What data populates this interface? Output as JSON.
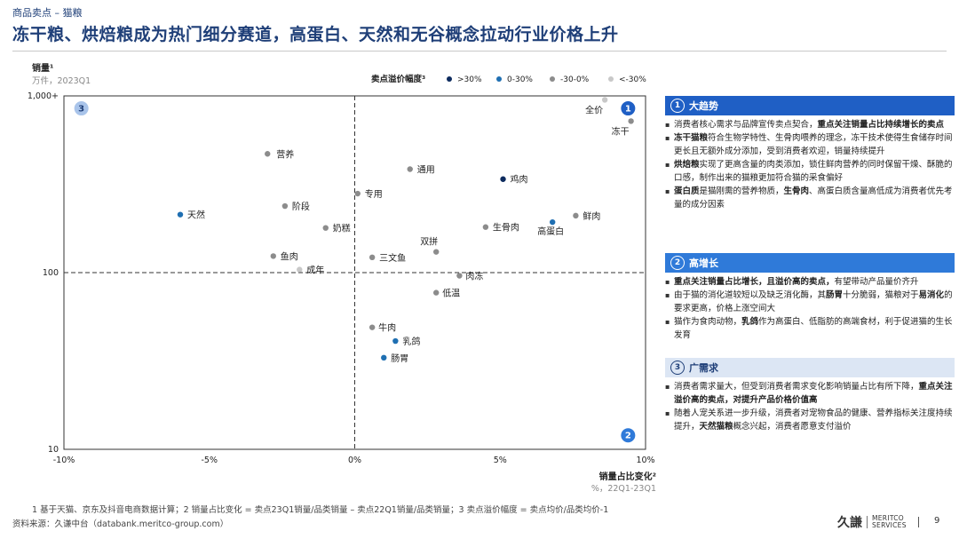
{
  "header": {
    "breadcrumb": "商品卖点 – 猫粮",
    "title": "冻干粮、烘焙粮成为热门细分赛道，高蛋白、天然和无谷概念拉动行业价格上升"
  },
  "chart_data": {
    "type": "scatter",
    "ylabel": "销量¹",
    "ylabel_unit": "万件，2023Q1",
    "xlabel": "销量占比变化²",
    "xlabel_unit": "%，22Q1-23Q1",
    "y_scale": "log",
    "ylim": [
      10,
      1000
    ],
    "y_ticks": [
      10,
      100,
      1000
    ],
    "y_tick_labels": [
      "10",
      "100",
      "1,000+"
    ],
    "xlim": [
      -10,
      10
    ],
    "x_ticks": [
      -10,
      -5,
      0,
      5,
      10
    ],
    "x_tick_labels": [
      "-10%",
      "-5%",
      "0%",
      "5%",
      "10%"
    ],
    "reference_lines": {
      "x": 0,
      "y": 100
    },
    "legend": {
      "title": "卖点溢价幅度³",
      "position": "top",
      "items": [
        {
          "label": ">30%",
          "color": "#0d2b5e"
        },
        {
          "label": "0-30%",
          "color": "#1f6fb2"
        },
        {
          "label": "-30-0%",
          "color": "#8c8c8c"
        },
        {
          "label": "<-30%",
          "color": "#c8c8c8"
        }
      ]
    },
    "quadrant_markers": [
      {
        "label": "1",
        "x": 9.4,
        "y": 850
      },
      {
        "label": "2",
        "x": 9.4,
        "y": 12
      },
      {
        "label": "3",
        "x": -9.4,
        "y": 850
      }
    ],
    "points": [
      {
        "name": "全价",
        "x": 8.6,
        "y": 950,
        "group": "<-30%"
      },
      {
        "name": "冻干",
        "x": 9.5,
        "y": 720,
        "group": "-30-0%"
      },
      {
        "name": "营养",
        "x": -3.0,
        "y": 470,
        "group": "-30-0%"
      },
      {
        "name": "通用",
        "x": 1.9,
        "y": 385,
        "group": "-30-0%"
      },
      {
        "name": "鸡肉",
        "x": 5.1,
        "y": 338,
        "group": ">30%"
      },
      {
        "name": "专用",
        "x": 0.1,
        "y": 280,
        "group": "-30-0%"
      },
      {
        "name": "阶段",
        "x": -2.4,
        "y": 238,
        "group": "-30-0%"
      },
      {
        "name": "天然",
        "x": -6.0,
        "y": 213,
        "group": "0-30%"
      },
      {
        "name": "鲜肉",
        "x": 7.6,
        "y": 210,
        "group": "-30-0%"
      },
      {
        "name": "高蛋白",
        "x": 6.8,
        "y": 193,
        "group": "0-30%"
      },
      {
        "name": "生骨肉",
        "x": 4.5,
        "y": 181,
        "group": "-30-0%"
      },
      {
        "name": "奶糕",
        "x": -1.0,
        "y": 179,
        "group": "-30-0%"
      },
      {
        "name": "双拼",
        "x": 2.8,
        "y": 131,
        "group": "-30-0%"
      },
      {
        "name": "三文鱼",
        "x": 0.6,
        "y": 122,
        "group": "-30-0%"
      },
      {
        "name": "鱼肉",
        "x": -2.8,
        "y": 124,
        "group": "-30-0%"
      },
      {
        "name": "成年",
        "x": -1.9,
        "y": 104,
        "group": "<-30%"
      },
      {
        "name": "肉冻",
        "x": 3.6,
        "y": 96,
        "group": "-30-0%"
      },
      {
        "name": "低温",
        "x": 2.8,
        "y": 77,
        "group": "-30-0%"
      },
      {
        "name": "牛肉",
        "x": 0.6,
        "y": 49,
        "group": "-30-0%"
      },
      {
        "name": "乳鸽",
        "x": 1.4,
        "y": 41,
        "group": "0-30%"
      },
      {
        "name": "肠胃",
        "x": 1.0,
        "y": 33,
        "group": "0-30%"
      }
    ]
  },
  "panels": [
    {
      "num": "1",
      "title": "大趋势",
      "bullets": [
        [
          {
            "t": "消费者核心需求与品牌宣传卖点契合，"
          },
          {
            "t": "重点关注销量占比持续增长的卖点",
            "b": true
          }
        ],
        [
          {
            "t": "冻干猫粮",
            "b": true
          },
          {
            "t": "符合生物学特性、生骨肉喂养的理念，冻干技术使得生食储存时间更长且无额外成分添加，受到消费者欢迎，销量持续提升"
          }
        ],
        [
          {
            "t": "烘焙粮",
            "b": true
          },
          {
            "t": "实现了更高含量的肉类添加，锁住鲜肉营养的同时保留干燥、酥脆的口感，制作出来的猫粮更加符合猫的采食偏好"
          }
        ],
        [
          {
            "t": "蛋白质",
            "b": true
          },
          {
            "t": "是猫刚需的营养物质，"
          },
          {
            "t": "生骨肉",
            "b": true
          },
          {
            "t": "、高蛋白质含量高低成为消费者优先考量的成分因素"
          }
        ]
      ]
    },
    {
      "num": "2",
      "title": "高增长",
      "bullets": [
        [
          {
            "t": "重点关注销量占比增长，且溢价高的卖点，",
            "b": true
          },
          {
            "t": "有望带动产品量价齐升"
          }
        ],
        [
          {
            "t": "由于猫的消化道较短以及缺乏消化酶，其"
          },
          {
            "t": "肠胃",
            "b": true
          },
          {
            "t": "十分脆弱，猫粮对于"
          },
          {
            "t": "易消化",
            "b": true
          },
          {
            "t": "的要求更高，价格上涨空间大"
          }
        ],
        [
          {
            "t": "猫作为食肉动物，"
          },
          {
            "t": "乳鸽",
            "b": true
          },
          {
            "t": "作为高蛋白、低脂肪的高端食材，利于促进猫的生长发育"
          }
        ]
      ]
    },
    {
      "num": "3",
      "title": "广需求",
      "bullets": [
        [
          {
            "t": "消费者需求量大，但受到消费者需求变化影响销量占比有所下降，"
          },
          {
            "t": "重点关注溢价高的卖点，对提升产品价格价值高",
            "b": true
          }
        ],
        [
          {
            "t": "随着人宠关系进一步升级，消费者对宠物食品的健康、营养指标关注度持续提升，"
          },
          {
            "t": "天然猫粮",
            "b": true
          },
          {
            "t": "概念兴起，消费者愿意支付溢价"
          }
        ]
      ]
    }
  ],
  "footer": {
    "footnote": "1  基于天猫、京东及抖音电商数据计算；2  销量占比变化 = 卖点23Q1销量/品类销量 – 卖点22Q1销量/品类销量；3  卖点溢价幅度 = 卖点均价/品类均价-1",
    "source": "资料来源：久谦中台（databank.meritco-group.com）",
    "logo_cn": "久謙",
    "logo_en_line1": "MERITCO",
    "logo_en_line2": "SERVICES",
    "page": "9"
  }
}
